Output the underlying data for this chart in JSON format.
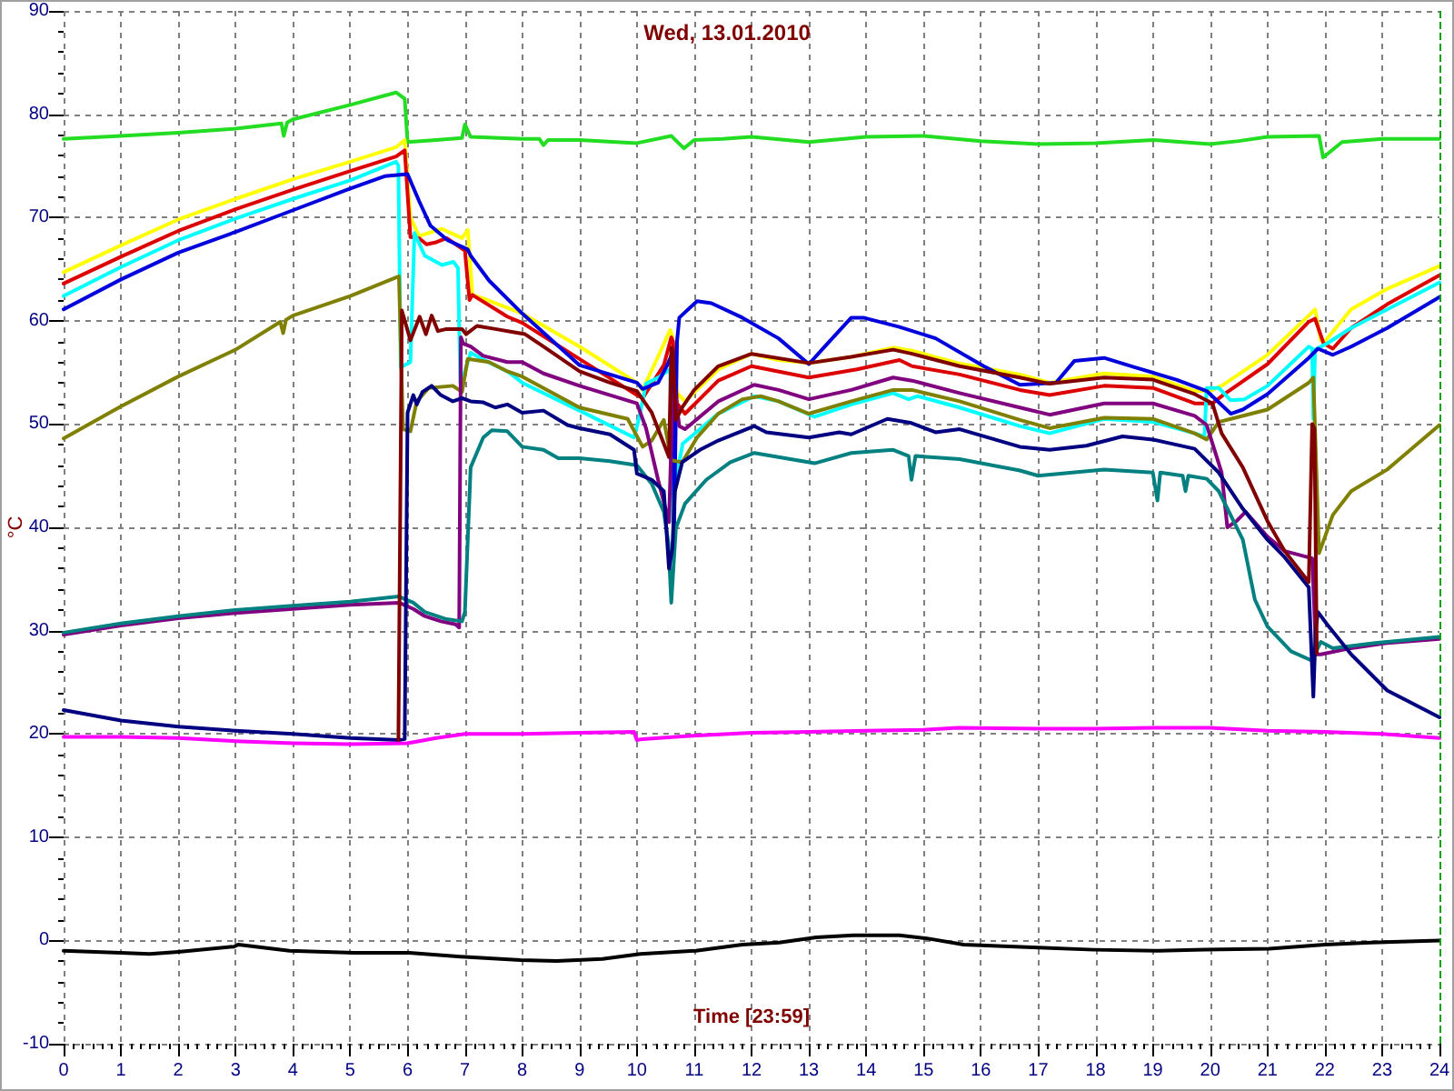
{
  "chart_data": {
    "type": "line",
    "title": "Wed, 13.01.2010",
    "xlabel": "Time [23:59]",
    "ylabel": "°C",
    "xlim": [
      0,
      24
    ],
    "xticks": [
      0,
      1,
      2,
      3,
      4,
      5,
      6,
      7,
      8,
      9,
      10,
      11,
      12,
      13,
      14,
      15,
      16,
      17,
      18,
      19,
      20,
      21,
      22,
      23,
      24
    ],
    "ylim": [
      -10,
      90
    ],
    "yticks": [
      -10,
      0,
      10,
      20,
      30,
      40,
      50,
      60,
      70,
      80,
      90
    ],
    "grid": true,
    "marker": "none",
    "line_style": "solid",
    "ref_lines": [
      {
        "axis": "x",
        "value": 24,
        "color": "#00a000",
        "line_style": "dashed"
      }
    ],
    "series": [
      {
        "color": "#22dd22",
        "x": [
          0,
          1,
          2,
          3,
          3.8,
          3.84,
          3.9,
          4,
          5,
          5.8,
          5.95,
          6.0,
          6.5,
          6.95,
          7.0,
          7.1,
          8,
          8.3,
          8.37,
          8.45,
          9,
          10,
          10.6,
          10.82,
          11,
          11.5,
          12,
          13,
          14,
          15,
          16,
          17,
          18,
          19,
          20,
          20.5,
          21,
          21.9,
          21.97,
          22.3,
          23,
          24
        ],
        "values": [
          77.6,
          77.9,
          78.2,
          78.6,
          79.1,
          77.9,
          79.2,
          79.5,
          80.9,
          82.1,
          81.5,
          77.3,
          77.5,
          77.7,
          79.0,
          77.8,
          77.6,
          77.6,
          77.0,
          77.5,
          77.5,
          77.2,
          77.9,
          76.7,
          77.5,
          77.6,
          77.8,
          77.3,
          77.8,
          77.9,
          77.4,
          77.1,
          77.2,
          77.5,
          77.1,
          77.4,
          77.8,
          77.9,
          75.8,
          77.3,
          77.6,
          77.6
        ]
      },
      {
        "color": "#ffff00",
        "x": [
          0,
          1,
          2,
          3,
          4,
          5,
          5.8,
          5.95,
          6.05,
          6.2,
          6.6,
          6.95,
          7.05,
          7.13,
          7.3,
          8,
          9,
          10,
          10.1,
          10.4,
          10.58,
          10.62,
          10.7,
          10.84,
          11.42,
          12,
          12.47,
          13,
          13.74,
          14.47,
          14.8,
          15.6,
          16.68,
          17.2,
          18.15,
          19,
          19.73,
          20,
          20.2,
          21,
          21.72,
          21.83,
          21.93,
          22.0,
          22.46,
          23.09,
          24
        ],
        "values": [
          64.7,
          67.3,
          69.8,
          71.8,
          73.7,
          75.4,
          76.8,
          77.5,
          70.0,
          68.2,
          68.9,
          68.0,
          68.8,
          62.5,
          62.2,
          60.7,
          57.5,
          54.0,
          53.3,
          56.9,
          59.1,
          58.5,
          53.0,
          52.2,
          55.3,
          56.8,
          56.2,
          55.9,
          56.5,
          57.4,
          57.1,
          55.9,
          54.8,
          54.0,
          54.9,
          54.6,
          53.2,
          53.2,
          53.7,
          56.7,
          60.5,
          61.1,
          58.1,
          58.0,
          61.1,
          63.1,
          65.3
        ]
      },
      {
        "color": "#dd0000",
        "x": [
          0,
          1,
          2,
          3,
          4,
          5,
          5.8,
          5.95,
          6.05,
          6.2,
          6.33,
          6.5,
          6.68,
          7.0,
          7.08,
          7.13,
          7.74,
          8,
          9,
          10,
          10.1,
          10.47,
          10.6,
          10.63,
          10.7,
          10.84,
          11.42,
          12,
          13,
          13.84,
          14.58,
          14.8,
          15.63,
          16.68,
          17.2,
          18.15,
          19,
          19.73,
          20.04,
          20.25,
          21,
          21.72,
          21.83,
          21.98,
          22.14,
          22.46,
          23.09,
          24
        ],
        "values": [
          63.6,
          66.2,
          68.7,
          70.8,
          72.7,
          74.5,
          75.9,
          76.5,
          68.1,
          68.0,
          67.4,
          67.6,
          68.0,
          66.8,
          62.0,
          62.5,
          60.4,
          59.8,
          56.3,
          52.8,
          52.5,
          55.7,
          58.4,
          58.0,
          52.0,
          51.0,
          54.2,
          55.6,
          54.5,
          55.3,
          56.2,
          55.6,
          54.8,
          53.3,
          52.8,
          53.7,
          53.5,
          52.0,
          52.0,
          52.9,
          55.8,
          59.9,
          60.2,
          57.8,
          57.3,
          59.3,
          61.6,
          64.4
        ]
      },
      {
        "color": "#00ffff",
        "x": [
          0,
          1,
          2,
          3,
          4,
          5,
          5.8,
          5.84,
          5.88,
          6.05,
          6.12,
          6.3,
          6.6,
          6.8,
          6.88,
          6.92,
          7.0,
          7.1,
          7.3,
          7.74,
          8,
          9,
          9.84,
          9.95,
          10.03,
          10.16,
          10.37,
          10.58,
          10.63,
          10.66,
          10.8,
          11.42,
          12.05,
          12.47,
          13.1,
          13.74,
          14.47,
          14.74,
          14.9,
          15.63,
          16.68,
          17.2,
          18.15,
          19,
          19.73,
          19.9,
          19.94,
          20.15,
          20.36,
          20.6,
          21,
          21.72,
          21.78,
          21.8,
          21.83,
          22.04,
          22.46,
          23.09,
          24
        ],
        "values": [
          62.4,
          65.2,
          67.8,
          69.9,
          71.8,
          73.6,
          75.4,
          75.0,
          55.5,
          56.0,
          68.5,
          66.3,
          65.4,
          65.7,
          65.1,
          54.0,
          55.1,
          56.9,
          56.3,
          55.1,
          54.0,
          51.3,
          49.0,
          48.7,
          50.4,
          53.9,
          54.5,
          55.3,
          40.5,
          44.0,
          48.1,
          51.0,
          52.7,
          52.2,
          50.7,
          51.9,
          53.0,
          52.4,
          52.7,
          51.6,
          49.8,
          49.1,
          50.5,
          50.2,
          49.1,
          48.8,
          53.5,
          53.5,
          52.3,
          52.4,
          53.7,
          57.5,
          57.3,
          50.5,
          57.2,
          57.8,
          59.3,
          61.1,
          63.7
        ]
      },
      {
        "color": "#0000dd",
        "x": [
          0,
          1,
          2,
          3,
          4,
          5,
          5.6,
          6.0,
          6.2,
          6.4,
          6.7,
          7.05,
          7.1,
          7.42,
          8,
          9,
          10,
          10.1,
          10.37,
          10.53,
          10.62,
          10.65,
          10.7,
          10.74,
          11.05,
          11.3,
          11.84,
          12.47,
          13.0,
          13.26,
          13.74,
          13.95,
          14.58,
          15.21,
          16.05,
          16.68,
          17.31,
          17.63,
          18.15,
          18.68,
          19.41,
          19.94,
          20.36,
          20.57,
          21,
          21.72,
          21.88,
          22.14,
          22.46,
          23.09,
          24
        ],
        "values": [
          61.1,
          64.0,
          66.6,
          68.6,
          70.7,
          72.8,
          74.0,
          74.2,
          71.6,
          69.2,
          67.8,
          66.9,
          66.3,
          63.9,
          60.7,
          55.7,
          54.0,
          53.4,
          54.0,
          55.7,
          56.9,
          40.0,
          58.0,
          60.3,
          61.9,
          61.7,
          60.3,
          58.3,
          55.8,
          57.4,
          60.3,
          60.3,
          59.4,
          58.3,
          55.6,
          53.8,
          54.0,
          56.1,
          56.4,
          55.5,
          54.3,
          53.2,
          51.0,
          51.4,
          52.9,
          56.4,
          57.3,
          56.7,
          57.5,
          59.3,
          62.3
        ]
      },
      {
        "color": "#808000",
        "x": [
          0,
          1,
          2,
          3,
          3.78,
          3.83,
          3.88,
          4,
          5,
          5.85,
          5.92,
          6.05,
          6.16,
          6.37,
          6.79,
          6.95,
          7.05,
          7.42,
          7.74,
          8,
          9,
          9.84,
          10.1,
          10.26,
          10.47,
          10.6,
          10.79,
          11.05,
          11.42,
          11.84,
          12.16,
          12.47,
          13,
          13.74,
          14.47,
          14.8,
          15.63,
          16.68,
          17.2,
          18.15,
          19,
          19.73,
          19.94,
          20.15,
          20.36,
          21,
          21.72,
          21.8,
          21.9,
          22.14,
          22.46,
          23.09,
          24
        ],
        "values": [
          48.6,
          51.7,
          54.6,
          57.2,
          59.9,
          58.8,
          60.1,
          60.5,
          62.4,
          64.3,
          49.5,
          49.3,
          52.2,
          53.5,
          53.7,
          53.1,
          56.3,
          56.0,
          55.1,
          54.6,
          51.6,
          50.5,
          47.8,
          48.4,
          50.4,
          46.5,
          46.3,
          48.7,
          51.0,
          52.4,
          52.7,
          52.2,
          51.0,
          52.2,
          53.3,
          53.3,
          52.2,
          50.4,
          49.6,
          50.6,
          50.5,
          49.1,
          48.5,
          50.2,
          50.5,
          51.4,
          54.0,
          54.5,
          37.5,
          41.2,
          43.5,
          45.6,
          49.9
        ]
      },
      {
        "color": "#800080",
        "x": [
          0,
          1,
          2,
          3,
          4,
          5,
          5.85,
          6.1,
          6.3,
          6.58,
          6.84,
          6.9,
          6.93,
          6.97,
          7.1,
          7.32,
          7.74,
          8,
          8.37,
          9,
          10,
          10.16,
          10.37,
          10.56,
          10.62,
          10.66,
          10.74,
          10.84,
          11.42,
          12.05,
          12.47,
          13,
          13.74,
          14.47,
          14.8,
          15.63,
          16.68,
          17.2,
          18.15,
          19,
          19.73,
          19.94,
          20.2,
          20.3,
          20.46,
          20.62,
          21,
          21.3,
          21.78,
          21.85,
          21.93,
          22.46,
          23.09,
          24
        ],
        "values": [
          29.6,
          30.5,
          31.2,
          31.7,
          32.1,
          32.5,
          32.7,
          32.1,
          31.4,
          30.9,
          30.6,
          30.3,
          58.4,
          57.8,
          57.5,
          56.6,
          56.0,
          56.0,
          54.9,
          53.7,
          52.0,
          49.6,
          44.6,
          40.5,
          52.0,
          53.3,
          49.8,
          49.5,
          52.2,
          53.8,
          53.3,
          52.4,
          53.3,
          54.5,
          54.2,
          53.0,
          51.6,
          50.9,
          52.0,
          52.0,
          50.8,
          49.9,
          45.3,
          40.0,
          40.6,
          41.5,
          39.1,
          37.7,
          37.0,
          27.7,
          27.7,
          28.3,
          28.8,
          29.2
        ]
      },
      {
        "color": "#008080",
        "x": [
          0,
          1,
          2,
          3,
          4,
          5,
          5.85,
          6.1,
          6.3,
          6.68,
          6.95,
          7.0,
          7.1,
          7.32,
          7.47,
          7.74,
          8,
          8.37,
          8.63,
          9,
          9.53,
          10,
          10.26,
          10.47,
          10.55,
          10.6,
          10.68,
          10.84,
          11.21,
          11.63,
          12.05,
          12.47,
          13.1,
          13.74,
          14.47,
          14.74,
          14.79,
          14.86,
          15.63,
          16.68,
          17.0,
          18.15,
          19,
          19.08,
          19.13,
          19.52,
          19.57,
          19.62,
          19.94,
          20.15,
          20.57,
          20.78,
          21,
          21.41,
          21.77,
          21.93,
          22.14,
          22.88,
          24
        ],
        "values": [
          29.8,
          30.7,
          31.4,
          32.0,
          32.4,
          32.8,
          33.3,
          32.7,
          31.8,
          31.1,
          30.9,
          31.8,
          45.8,
          48.7,
          49.4,
          49.3,
          47.8,
          47.5,
          46.7,
          46.7,
          46.4,
          46.0,
          44.2,
          41.5,
          38.5,
          32.7,
          39.9,
          42.3,
          44.6,
          46.3,
          47.2,
          46.8,
          46.2,
          47.2,
          47.5,
          46.9,
          44.6,
          46.9,
          46.6,
          45.5,
          45.0,
          45.6,
          45.3,
          42.6,
          45.3,
          45.0,
          43.5,
          45.0,
          44.7,
          43.5,
          38.8,
          33.0,
          30.4,
          28.0,
          27.1,
          28.9,
          28.3,
          28.8,
          29.4
        ]
      },
      {
        "color": "#000080",
        "x": [
          0,
          1,
          2,
          3,
          4,
          5,
          5.85,
          5.95,
          6.0,
          6.1,
          6.16,
          6.26,
          6.42,
          6.58,
          6.79,
          6.95,
          7.1,
          7.32,
          7.53,
          7.74,
          8,
          8.37,
          8.79,
          9,
          9.53,
          9.95,
          10.0,
          10.26,
          10.47,
          10.56,
          10.62,
          10.66,
          10.79,
          11.1,
          11.42,
          12.05,
          12.26,
          13,
          13.53,
          13.74,
          14.37,
          14.79,
          15.21,
          15.63,
          16.68,
          17.2,
          17.84,
          18.47,
          19,
          19.73,
          20.15,
          20.57,
          21,
          21.3,
          21.72,
          21.8,
          21.84,
          21.88,
          22.04,
          22.46,
          23.09,
          24
        ],
        "values": [
          22.3,
          21.3,
          20.7,
          20.3,
          20.0,
          19.6,
          19.4,
          19.5,
          51.1,
          52.8,
          51.9,
          53.1,
          53.7,
          52.8,
          52.2,
          52.5,
          52.2,
          52.1,
          51.6,
          51.9,
          51.1,
          51.3,
          49.9,
          49.6,
          49.0,
          47.5,
          45.2,
          44.6,
          43.5,
          36.0,
          38.0,
          43.4,
          46.3,
          47.5,
          48.4,
          49.8,
          49.2,
          48.7,
          49.2,
          49.0,
          50.5,
          50.1,
          49.2,
          49.5,
          47.8,
          47.5,
          47.9,
          48.8,
          48.5,
          47.6,
          45.3,
          41.8,
          38.8,
          37.1,
          34.2,
          23.6,
          30.0,
          31.8,
          30.6,
          27.7,
          24.2,
          21.6
        ]
      },
      {
        "color": "#800000",
        "x": [
          5.84,
          5.9,
          6.05,
          6.21,
          6.32,
          6.42,
          6.53,
          6.68,
          6.95,
          7.02,
          7.21,
          7.53,
          7.84,
          8.05,
          8.37,
          9,
          9.53,
          10,
          10.26,
          10.47,
          10.56,
          10.6,
          10.63,
          10.68,
          10.79,
          11,
          11.42,
          12,
          13,
          13.74,
          14.47,
          14.8,
          15.63,
          16.68,
          17.2,
          18.15,
          19,
          19.73,
          20.04,
          20.2,
          20.57,
          21,
          21.3,
          21.72,
          21.78,
          21.82,
          21.86
        ],
        "values": [
          19.4,
          61.0,
          58.1,
          60.4,
          58.7,
          60.5,
          59.0,
          59.2,
          59.2,
          58.7,
          59.5,
          59.2,
          58.9,
          58.7,
          57.5,
          55.1,
          54.0,
          53.2,
          51.1,
          48.1,
          46.8,
          57.4,
          57.0,
          50.4,
          51.6,
          53.3,
          55.6,
          56.8,
          55.9,
          56.5,
          57.2,
          56.8,
          55.6,
          54.5,
          53.9,
          54.5,
          54.3,
          52.9,
          52.0,
          49.1,
          45.8,
          40.6,
          37.7,
          34.7,
          50.0,
          49.5,
          27.8
        ]
      },
      {
        "color": "#ff00ff",
        "x": [
          0,
          1,
          2,
          3,
          4,
          5,
          6,
          6.5,
          7,
          8,
          9,
          9.95,
          10.0,
          10.1,
          10.9,
          12,
          13,
          14,
          15,
          15.6,
          17,
          18,
          19,
          20,
          21,
          22,
          23,
          24
        ],
        "values": [
          19.7,
          19.7,
          19.6,
          19.3,
          19.1,
          19.0,
          19.1,
          19.6,
          20.0,
          20.0,
          20.1,
          20.2,
          19.4,
          19.5,
          19.8,
          20.1,
          20.2,
          20.3,
          20.4,
          20.6,
          20.5,
          20.5,
          20.6,
          20.6,
          20.3,
          20.2,
          20.0,
          19.6
        ]
      },
      {
        "color": "#000000",
        "x": [
          0,
          1,
          1.5,
          2,
          2.97,
          3.05,
          3.94,
          5.06,
          6.03,
          7,
          7.97,
          8.6,
          9.4,
          10.06,
          11.03,
          11.84,
          12.48,
          13.13,
          13.77,
          14.58,
          15.06,
          15.7,
          17,
          17.97,
          19.1,
          19.9,
          21.03,
          22,
          22.8,
          23.45,
          24
        ],
        "values": [
          -1.0,
          -1.2,
          -1.3,
          -1.1,
          -0.6,
          -0.4,
          -1.0,
          -1.2,
          -1.2,
          -1.6,
          -1.9,
          -2.0,
          -1.8,
          -1.3,
          -1.0,
          -0.4,
          -0.2,
          0.3,
          0.5,
          0.5,
          0.2,
          -0.4,
          -0.7,
          -0.9,
          -1.0,
          -0.9,
          -0.8,
          -0.4,
          -0.2,
          -0.1,
          0.0
        ]
      }
    ]
  }
}
